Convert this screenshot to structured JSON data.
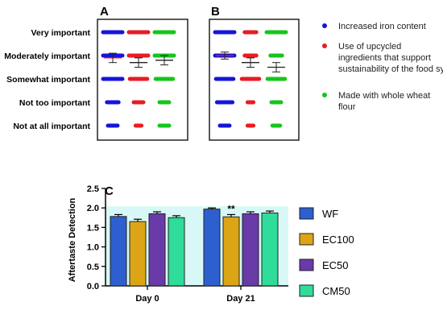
{
  "panel_labels": {
    "a": "A",
    "b": "B",
    "c": "C"
  },
  "colors": {
    "iron": "#1515d8",
    "upcycled": "#e81b23",
    "wheat": "#16c51c",
    "WF": "#2d5fcf",
    "EC100": "#dba516",
    "EC50": "#6a3aa8",
    "CM50": "#2fdc9a",
    "errorbar": "#222222",
    "panel_c_fill": "#d7f8f6"
  },
  "legend_ab": [
    {
      "key": "iron",
      "label": "Increased iron content"
    },
    {
      "key": "upcycled",
      "label": "Use of upcycled ingredients that support sustainability of the food system"
    },
    {
      "key": "wheat",
      "label": "Made with whole wheat flour"
    }
  ],
  "chart_data": [
    {
      "id": "A",
      "type": "scatter",
      "title": "A",
      "categories": [
        "Very important",
        "Moderately important",
        "Somewhat important",
        "Not too important",
        "Not at all important"
      ],
      "series": [
        {
          "name": "Increased iron content",
          "color_key": "iron",
          "dash_widths": [
            1,
            1,
            1,
            0.6,
            0.5
          ],
          "mean": 2.1,
          "error": 0.2
        },
        {
          "name": "Use of upcycled ingredients that support sustainability of the food system",
          "color_key": "upcycled",
          "dash_widths": [
            1,
            1,
            0.9,
            0.5,
            0.3
          ],
          "mean": 2.3,
          "error": 0.2
        },
        {
          "name": "Made with whole wheat flour",
          "color_key": "wheat",
          "dash_widths": [
            1,
            1,
            0.9,
            0.5,
            0.5
          ],
          "mean": 2.2,
          "error": 0.2
        }
      ]
    },
    {
      "id": "B",
      "type": "scatter",
      "title": "B",
      "categories": [
        "Very important",
        "Moderately important",
        "Somewhat important",
        "Not too important",
        "Not at all important"
      ],
      "series": [
        {
          "name": "Increased iron content",
          "color_key": "iron",
          "dash_widths": [
            1,
            1,
            0.9,
            0.8,
            0.5
          ],
          "mean": 2.0,
          "error": 0.15
        },
        {
          "name": "Use of upcycled ingredients that support sustainability of the food system",
          "color_key": "upcycled",
          "dash_widths": [
            0.6,
            0.6,
            0.9,
            0.3,
            0.3
          ],
          "mean": 2.3,
          "error": 0.2
        },
        {
          "name": "Made with whole wheat flour",
          "color_key": "wheat",
          "dash_widths": [
            1,
            0.6,
            0.9,
            0.5,
            0.4
          ],
          "mean": 2.5,
          "error": 0.2
        }
      ]
    },
    {
      "id": "C",
      "type": "bar",
      "title": "C",
      "ylabel": "Aftertaste Detection",
      "ylim": [
        0,
        2.5
      ],
      "yticks": [
        "0.0",
        "0.5",
        "1.0",
        "1.5",
        "2.0",
        "2.5"
      ],
      "categories": [
        "Day 0",
        "Day 21"
      ],
      "series": [
        {
          "name": "WF",
          "values": [
            1.78,
            1.97
          ],
          "errors": [
            0.05,
            0.03
          ]
        },
        {
          "name": "EC100",
          "values": [
            1.65,
            1.77
          ],
          "errors": [
            0.06,
            0.06
          ]
        },
        {
          "name": "EC50",
          "values": [
            1.85,
            1.85
          ],
          "errors": [
            0.05,
            0.05
          ]
        },
        {
          "name": "CM50",
          "values": [
            1.75,
            1.87
          ],
          "errors": [
            0.05,
            0.05
          ]
        }
      ],
      "annotations": [
        {
          "category": "Day 21",
          "series": "EC100",
          "text": "**"
        }
      ]
    }
  ]
}
